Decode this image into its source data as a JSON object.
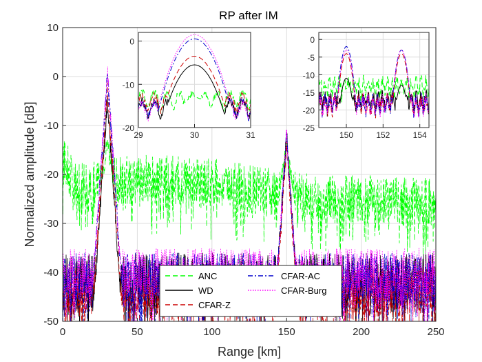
{
  "chart_data": [
    {
      "type": "line",
      "title": "RP after IM",
      "xlabel": "Range [km]",
      "ylabel": "Normalized amplitude [dB]",
      "xlim": [
        0,
        250
      ],
      "ylim": [
        -50,
        10
      ],
      "xticks": [
        0,
        50,
        100,
        150,
        200,
        250
      ],
      "yticks": [
        -50,
        -40,
        -30,
        -20,
        -10,
        0,
        10
      ],
      "grid": true,
      "legend": {
        "position": "bottom-center",
        "columns": 2
      },
      "series": [
        {
          "name": "ANC",
          "color": "#00ff00",
          "style": "dashed",
          "floor": -23,
          "noise": 5,
          "peaks": [
            [
              30,
              -13
            ],
            [
              150,
              -14
            ]
          ]
        },
        {
          "name": "WD",
          "color": "#000000",
          "style": "solid",
          "floor": -42,
          "noise": 6,
          "peaks": [
            [
              30,
              -5
            ],
            [
              150,
              -12
            ]
          ]
        },
        {
          "name": "CFAR-Z",
          "color": "#cc0000",
          "style": "dashed",
          "floor": -44,
          "noise": 5,
          "peaks": [
            [
              30,
              -3
            ],
            [
              150,
              -14
            ]
          ]
        },
        {
          "name": "CFAR-AC",
          "color": "#0000cc",
          "style": "dashdot",
          "floor": -41,
          "noise": 5,
          "peaks": [
            [
              30,
              0.5
            ],
            [
              150,
              -12
            ]
          ]
        },
        {
          "name": "CFAR-Burg",
          "color": "#ff00ff",
          "style": "dotted",
          "floor": -40,
          "noise": 5,
          "peaks": [
            [
              30,
              1
            ],
            [
              150,
              -12
            ]
          ]
        }
      ]
    },
    {
      "type": "line",
      "role": "inset",
      "xlim": [
        29,
        31
      ],
      "ylim": [
        -20,
        2
      ],
      "xticks": [
        29,
        30,
        31
      ],
      "yticks": [
        -20,
        -10,
        0
      ],
      "series": [
        {
          "name": "ANC",
          "peak": -13,
          "floor": -16
        },
        {
          "name": "WD",
          "peak": -5.5,
          "floor": -18
        },
        {
          "name": "CFAR-Z",
          "peak": -3.5,
          "floor": -16.5
        },
        {
          "name": "CFAR-AC",
          "peak": 0.5,
          "floor": -18
        },
        {
          "name": "CFAR-Burg",
          "peak": 1.5,
          "floor": -18.5
        }
      ]
    },
    {
      "type": "line",
      "role": "inset",
      "xlim": [
        148.5,
        154.5
      ],
      "ylim": [
        -25,
        2
      ],
      "xticks": [
        150,
        152,
        154
      ],
      "yticks": [
        -25,
        -20,
        -15,
        -10,
        -5,
        0
      ],
      "series": [
        {
          "name": "ANC",
          "peaks": [
            [
              150,
              -14
            ],
            [
              153,
              -15
            ]
          ],
          "floor": -16
        },
        {
          "name": "WD",
          "peaks": [
            [
              150,
              -11
            ],
            [
              153,
              -13
            ]
          ],
          "floor": -20
        },
        {
          "name": "CFAR-Z",
          "peaks": [
            [
              150,
              -4
            ],
            [
              153,
              -4
            ]
          ],
          "floor": -21
        },
        {
          "name": "CFAR-AC",
          "peaks": [
            [
              150,
              -2
            ],
            [
              153,
              -3
            ]
          ],
          "floor": -21
        },
        {
          "name": "CFAR-Burg",
          "peaks": [
            [
              150,
              -3
            ],
            [
              153,
              -3
            ]
          ],
          "floor": -21
        }
      ]
    }
  ]
}
